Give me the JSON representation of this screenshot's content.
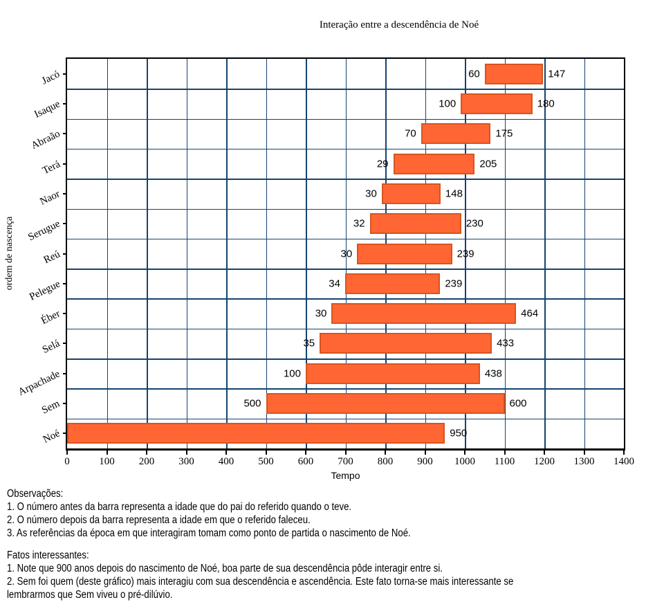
{
  "chart_data": {
    "type": "bar",
    "variant": "horizontal-range-gantt",
    "title": "Interação entre a descendência de Noé",
    "xlabel": "Tempo",
    "ylabel": "ordem de nascença",
    "xlim": [
      0,
      1400
    ],
    "xtick_step": 100,
    "grid": true,
    "categories_top_to_bottom": [
      "Jacó",
      "Isaque",
      "Abraão",
      "Terá",
      "Naor",
      "Serugue",
      "Reú",
      "Pelegue",
      "Éber",
      "Selá",
      "Arpachade",
      "Sem",
      "Noé"
    ],
    "bars": [
      {
        "name": "Jacó",
        "start": 1050,
        "end": 1197,
        "label_before": "60",
        "label_after": "147"
      },
      {
        "name": "Isaque",
        "start": 990,
        "end": 1170,
        "label_before": "100",
        "label_after": "180"
      },
      {
        "name": "Abraão",
        "start": 890,
        "end": 1065,
        "label_before": "70",
        "label_after": "175"
      },
      {
        "name": "Terá",
        "start": 820,
        "end": 1025,
        "label_before": "29",
        "label_after": "205"
      },
      {
        "name": "Naor",
        "start": 791,
        "end": 939,
        "label_before": "30",
        "label_after": "148"
      },
      {
        "name": "Serugue",
        "start": 761,
        "end": 991,
        "label_before": "32",
        "label_after": "230"
      },
      {
        "name": "Reú",
        "start": 729,
        "end": 968,
        "label_before": "30",
        "label_after": "239"
      },
      {
        "name": "Pelegue",
        "start": 699,
        "end": 938,
        "label_before": "34",
        "label_after": "239"
      },
      {
        "name": "Éber",
        "start": 665,
        "end": 1129,
        "label_before": "30",
        "label_after": "464"
      },
      {
        "name": "Selá",
        "start": 635,
        "end": 1068,
        "label_before": "35",
        "label_after": "433"
      },
      {
        "name": "Arpachade",
        "start": 600,
        "end": 1038,
        "label_before": "100",
        "label_after": "438"
      },
      {
        "name": "Sem",
        "start": 500,
        "end": 1100,
        "label_before": "500",
        "label_after": "600"
      },
      {
        "name": "Noé",
        "start": 0,
        "end": 950,
        "label_before": "",
        "label_after": "950"
      }
    ]
  },
  "notes": {
    "observations_title": "Observações:",
    "observations": [
      "1. O número antes da barra representa a idade que do pai do referido quando o teve.",
      "2. O número depois da barra representa a idade em que o referido faleceu.",
      "3. As referências da época em que interagiram tomam como ponto de partida o nascimento de Noé."
    ],
    "facts_title": "Fatos interessantes:",
    "facts": [
      "1. Note que 900 anos depois do nascimento de Noé, boa parte de sua descendência pôde interagir entre si.",
      "2. Sem foi quem (deste gráfico) mais interagiu com sua descendência e ascendência. Este fato torna-se mais interessante se lembrarmos que Sem viveu o pré-dilúvio."
    ]
  },
  "colors": {
    "bar_fill": "#FF6633",
    "bar_border": "#D6551F",
    "grid_line": "#14426F",
    "axis_frame": "#000000"
  }
}
